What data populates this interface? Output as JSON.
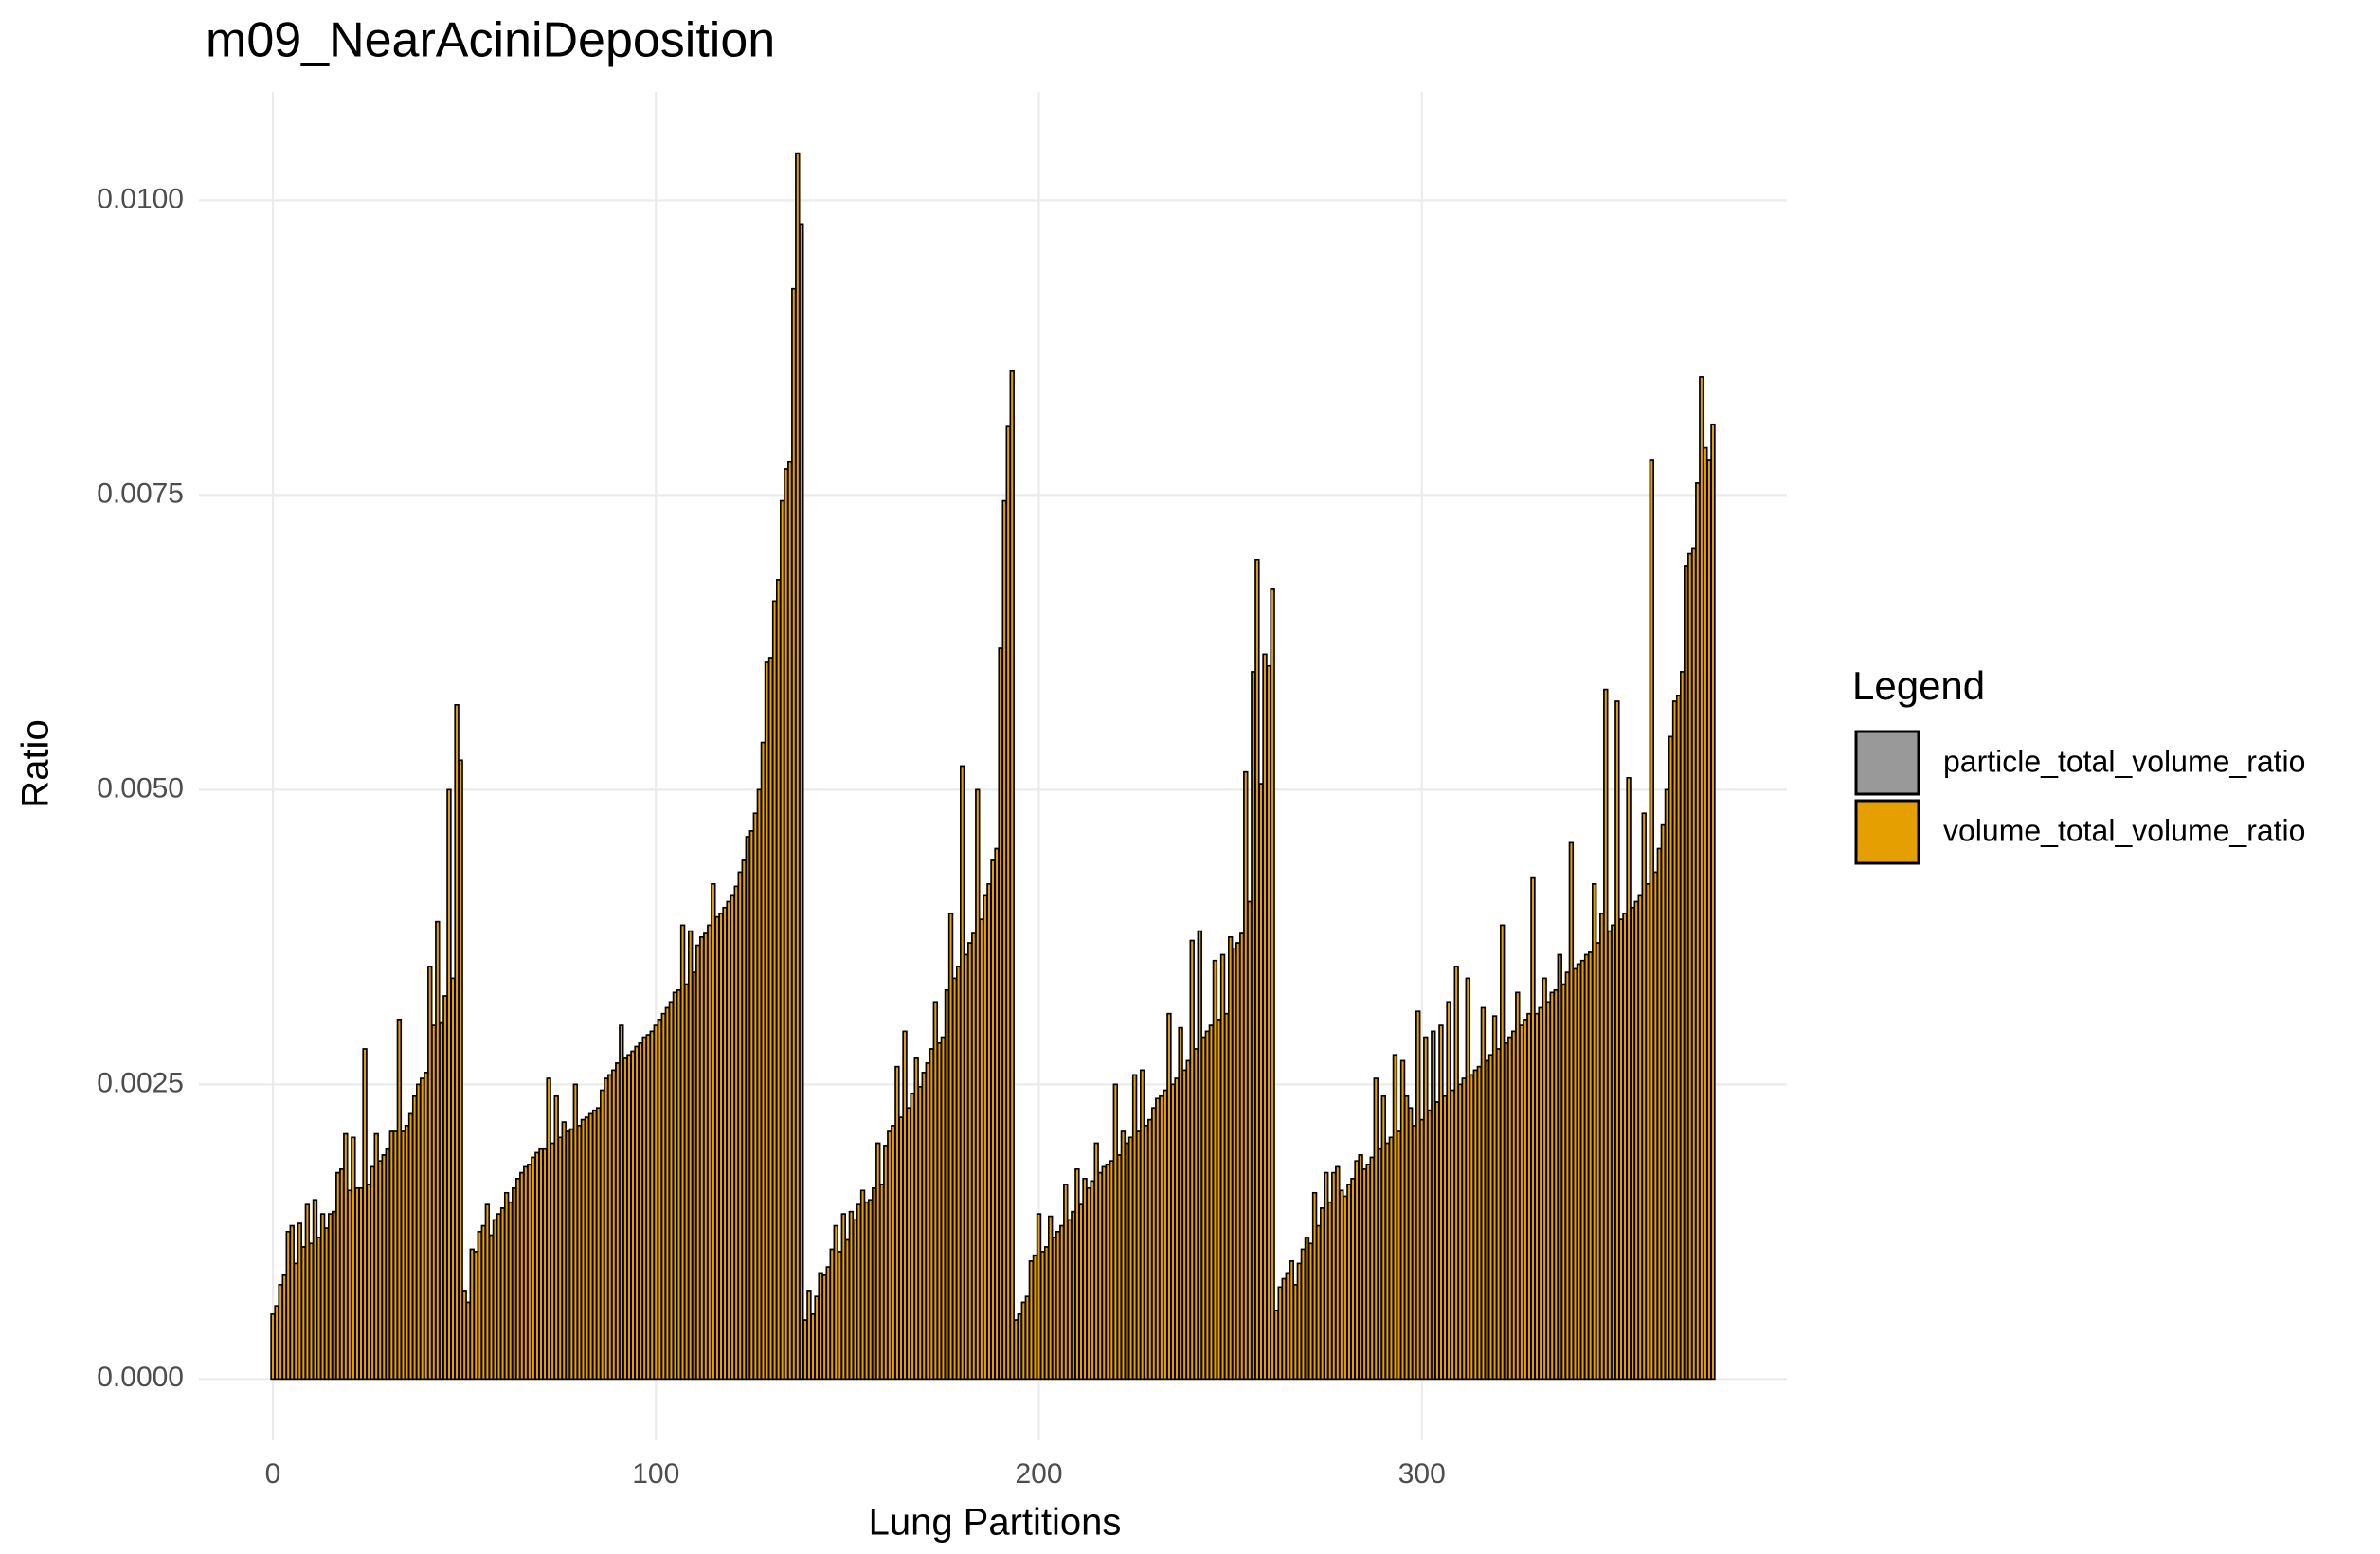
{
  "chart_data": {
    "type": "bar",
    "title": "m09_NearAciniDeposition",
    "x_label": "Lung Partitions",
    "y_label": "Ratio",
    "legend_title": "Legend",
    "legend": "right",
    "grid": true,
    "bar_outline": "#000000",
    "xlim": [
      -19.3,
      395.3
    ],
    "xticks": [
      0,
      100,
      200,
      300
    ],
    "ylim": [
      -0.00052,
      0.01092
    ],
    "yticks": [
      {
        "value": 0,
        "label": "0.0000"
      },
      {
        "value": 0.0025,
        "label": "0.0025"
      },
      {
        "value": 0.005,
        "label": "0.0050"
      },
      {
        "value": 0.0075,
        "label": "0.0075"
      },
      {
        "value": 0.01,
        "label": "0.0100"
      }
    ],
    "x": [
      0,
      1,
      2,
      3,
      4,
      5,
      6,
      7,
      8,
      9,
      10,
      11,
      12,
      13,
      14,
      15,
      16,
      17,
      18,
      19,
      20,
      21,
      22,
      23,
      24,
      25,
      26,
      27,
      28,
      29,
      30,
      31,
      32,
      33,
      34,
      35,
      36,
      37,
      38,
      39,
      40,
      41,
      42,
      43,
      44,
      45,
      46,
      47,
      48,
      49,
      50,
      51,
      52,
      53,
      54,
      55,
      56,
      57,
      58,
      59,
      60,
      61,
      62,
      63,
      64,
      65,
      66,
      67,
      68,
      69,
      70,
      71,
      72,
      73,
      74,
      75,
      76,
      77,
      78,
      79,
      80,
      81,
      82,
      83,
      84,
      85,
      86,
      87,
      88,
      89,
      90,
      91,
      92,
      93,
      94,
      95,
      96,
      97,
      98,
      99,
      100,
      101,
      102,
      103,
      104,
      105,
      106,
      107,
      108,
      109,
      110,
      111,
      112,
      113,
      114,
      115,
      116,
      117,
      118,
      119,
      120,
      121,
      122,
      123,
      124,
      125,
      126,
      127,
      128,
      129,
      130,
      131,
      132,
      133,
      134,
      135,
      136,
      137,
      138,
      139,
      140,
      141,
      142,
      143,
      144,
      145,
      146,
      147,
      148,
      149,
      150,
      151,
      152,
      153,
      154,
      155,
      156,
      157,
      158,
      159,
      160,
      161,
      162,
      163,
      164,
      165,
      166,
      167,
      168,
      169,
      170,
      171,
      172,
      173,
      174,
      175,
      176,
      177,
      178,
      179,
      180,
      181,
      182,
      183,
      184,
      185,
      186,
      187,
      188,
      189,
      190,
      191,
      192,
      193,
      194,
      195,
      196,
      197,
      198,
      199,
      200,
      201,
      202,
      203,
      204,
      205,
      206,
      207,
      208,
      209,
      210,
      211,
      212,
      213,
      214,
      215,
      216,
      217,
      218,
      219,
      220,
      221,
      222,
      223,
      224,
      225,
      226,
      227,
      228,
      229,
      230,
      231,
      232,
      233,
      234,
      235,
      236,
      237,
      238,
      239,
      240,
      241,
      242,
      243,
      244,
      245,
      246,
      247,
      248,
      249,
      250,
      251,
      252,
      253,
      254,
      255,
      256,
      257,
      258,
      259,
      260,
      261,
      262,
      263,
      264,
      265,
      266,
      267,
      268,
      269,
      270,
      271,
      272,
      273,
      274,
      275,
      276,
      277,
      278,
      279,
      280,
      281,
      282,
      283,
      284,
      285,
      286,
      287,
      288,
      289,
      290,
      291,
      292,
      293,
      294,
      295,
      296,
      297,
      298,
      299,
      300,
      301,
      302,
      303,
      304,
      305,
      306,
      307,
      308,
      309,
      310,
      311,
      312,
      313,
      314,
      315,
      316,
      317,
      318,
      319,
      320,
      321,
      322,
      323,
      324,
      325,
      326,
      327,
      328,
      329,
      330,
      331,
      332,
      333,
      334,
      335,
      336,
      337,
      338,
      339,
      340,
      341,
      342,
      343,
      344,
      345,
      346,
      347,
      348,
      349,
      350,
      351,
      352,
      353,
      354,
      355,
      356,
      357,
      358,
      359,
      360,
      361,
      362,
      363,
      364,
      365,
      366,
      367,
      368,
      369,
      370,
      371,
      372,
      373,
      374,
      375,
      376
    ],
    "series": [
      {
        "name": "particle_total_volume_ratio",
        "color": "#999999",
        "values": [
          0.00055,
          0.00062,
          0.0008,
          0.00088,
          0.00125,
          0.0013,
          0.00098,
          0.00132,
          0.00112,
          0.00148,
          0.00115,
          0.00152,
          0.0012,
          0.0014,
          0.00128,
          0.0014,
          0.00142,
          0.00175,
          0.00178,
          0.00208,
          0.0016,
          0.00205,
          0.00162,
          0.00162,
          0.0028,
          0.00165,
          0.0018,
          0.00208,
          0.00185,
          0.0019,
          0.00195,
          0.0021,
          0.0021,
          0.00305,
          0.0021,
          0.00215,
          0.00225,
          0.0024,
          0.0025,
          0.00255,
          0.0026,
          0.0035,
          0.003,
          0.00388,
          0.00302,
          0.00325,
          0.005,
          0.0034,
          0.00572,
          0.00525,
          0.00075,
          0.00065,
          0.0011,
          0.00108,
          0.00125,
          0.0013,
          0.00148,
          0.00122,
          0.00135,
          0.0014,
          0.00145,
          0.00158,
          0.0015,
          0.00162,
          0.0017,
          0.00175,
          0.0018,
          0.00182,
          0.00188,
          0.00192,
          0.00195,
          0.00195,
          0.00255,
          0.002,
          0.0024,
          0.00205,
          0.00218,
          0.0021,
          0.00212,
          0.0025,
          0.00215,
          0.0022,
          0.00222,
          0.00225,
          0.00228,
          0.0023,
          0.00245,
          0.00255,
          0.00258,
          0.00262,
          0.00268,
          0.003,
          0.00272,
          0.00275,
          0.00278,
          0.00282,
          0.00285,
          0.0029,
          0.00292,
          0.00295,
          0.003,
          0.00305,
          0.0031,
          0.00315,
          0.0032,
          0.00328,
          0.0033,
          0.00385,
          0.00335,
          0.0038,
          0.00345,
          0.00368,
          0.00375,
          0.00378,
          0.00385,
          0.0042,
          0.00392,
          0.00395,
          0.004,
          0.00405,
          0.0041,
          0.00418,
          0.0043,
          0.0044,
          0.0046,
          0.00465,
          0.0048,
          0.005,
          0.0054,
          0.00608,
          0.00612,
          0.0066,
          0.00678,
          0.00745,
          0.00772,
          0.00778,
          0.00925,
          0.0104,
          0.0098,
          0.0005,
          0.00075,
          0.00055,
          0.0007,
          0.0009,
          0.00088,
          0.00095,
          0.0011,
          0.0013,
          0.00108,
          0.0014,
          0.00118,
          0.00142,
          0.00135,
          0.00148,
          0.0016,
          0.0015,
          0.00152,
          0.00162,
          0.002,
          0.00165,
          0.00198,
          0.0021,
          0.00215,
          0.00265,
          0.00222,
          0.00295,
          0.0023,
          0.00242,
          0.00272,
          0.00248,
          0.0026,
          0.00268,
          0.0028,
          0.0032,
          0.00285,
          0.0029,
          0.0033,
          0.00395,
          0.0034,
          0.0035,
          0.0052,
          0.0036,
          0.0037,
          0.00378,
          0.005,
          0.0039,
          0.0041,
          0.0042,
          0.0044,
          0.0045,
          0.0062,
          0.00745,
          0.00808,
          0.00855,
          0.0005,
          0.00055,
          0.00065,
          0.0007,
          0.001,
          0.00105,
          0.0014,
          0.00108,
          0.00112,
          0.00138,
          0.0012,
          0.00125,
          0.0013,
          0.00165,
          0.00135,
          0.00142,
          0.00178,
          0.00148,
          0.0017,
          0.00162,
          0.00168,
          0.002,
          0.00175,
          0.0018,
          0.00182,
          0.00185,
          0.0025,
          0.0019,
          0.0021,
          0.002,
          0.00205,
          0.00258,
          0.0021,
          0.00262,
          0.00215,
          0.0022,
          0.0023,
          0.00238,
          0.0024,
          0.00245,
          0.0031,
          0.0025,
          0.00255,
          0.00298,
          0.00262,
          0.0027,
          0.00372,
          0.0028,
          0.0038,
          0.0029,
          0.00295,
          0.003,
          0.00355,
          0.00305,
          0.0036,
          0.0031,
          0.00375,
          0.00365,
          0.0037,
          0.00378,
          0.00515,
          0.00405,
          0.006,
          0.00695,
          0.00505,
          0.00615,
          0.00605,
          0.0067,
          0.00058,
          0.00078,
          0.00085,
          0.0009,
          0.001,
          0.0008,
          0.00098,
          0.0011,
          0.0012,
          0.00115,
          0.00158,
          0.0013,
          0.00145,
          0.00175,
          0.0015,
          0.00175,
          0.0018,
          0.0016,
          0.00155,
          0.00165,
          0.0017,
          0.00185,
          0.0019,
          0.00178,
          0.00182,
          0.00188,
          0.00255,
          0.00195,
          0.0024,
          0.002,
          0.00205,
          0.00275,
          0.0021,
          0.0027,
          0.0024,
          0.0023,
          0.00215,
          0.00312,
          0.0022,
          0.0029,
          0.00228,
          0.00295,
          0.00235,
          0.003,
          0.0024,
          0.0032,
          0.00245,
          0.0035,
          0.0025,
          0.00255,
          0.0034,
          0.00258,
          0.00262,
          0.00265,
          0.00315,
          0.0027,
          0.00275,
          0.00308,
          0.0028,
          0.00385,
          0.00285,
          0.0029,
          0.00295,
          0.00328,
          0.003,
          0.00305,
          0.0031,
          0.00425,
          0.0031,
          0.00315,
          0.0034,
          0.0032,
          0.00328,
          0.0033,
          0.0036,
          0.00335,
          0.00345,
          0.00455,
          0.00348,
          0.00352,
          0.00355,
          0.0036,
          0.00362,
          0.0042,
          0.0037,
          0.00395,
          0.00585,
          0.0038,
          0.00385,
          0.00575,
          0.0039,
          0.00395,
          0.0051,
          0.004,
          0.00405,
          0.0041,
          0.0048,
          0.0042,
          0.0078,
          0.0043,
          0.0045,
          0.0047,
          0.005,
          0.00545,
          0.00575,
          0.0058,
          0.006,
          0.0069,
          0.007,
          0.00705,
          0.0076,
          0.0085,
          0.0079,
          0.0078,
          0.0081
        ]
      },
      {
        "name": "volume_total_volume_ratio",
        "color": "#E69F00",
        "values": [
          0.00055,
          0.00062,
          0.0008,
          0.00088,
          0.00125,
          0.0013,
          0.00098,
          0.00132,
          0.00112,
          0.00148,
          0.00115,
          0.00152,
          0.0012,
          0.0014,
          0.00128,
          0.0014,
          0.00142,
          0.00175,
          0.00178,
          0.00208,
          0.0016,
          0.00205,
          0.00162,
          0.00162,
          0.0028,
          0.00165,
          0.0018,
          0.00208,
          0.00185,
          0.0019,
          0.00195,
          0.0021,
          0.0021,
          0.00305,
          0.0021,
          0.00215,
          0.00225,
          0.0024,
          0.0025,
          0.00255,
          0.0026,
          0.0035,
          0.003,
          0.00388,
          0.00302,
          0.00325,
          0.005,
          0.0034,
          0.00572,
          0.00525,
          0.00075,
          0.00065,
          0.0011,
          0.00108,
          0.00125,
          0.0013,
          0.00148,
          0.00122,
          0.00135,
          0.0014,
          0.00145,
          0.00158,
          0.0015,
          0.00162,
          0.0017,
          0.00175,
          0.0018,
          0.00182,
          0.00188,
          0.00192,
          0.00195,
          0.00195,
          0.00255,
          0.002,
          0.0024,
          0.00205,
          0.00218,
          0.0021,
          0.00212,
          0.0025,
          0.00215,
          0.0022,
          0.00222,
          0.00225,
          0.00228,
          0.0023,
          0.00245,
          0.00255,
          0.00258,
          0.00262,
          0.00268,
          0.003,
          0.00272,
          0.00275,
          0.00278,
          0.00282,
          0.00285,
          0.0029,
          0.00292,
          0.00295,
          0.003,
          0.00305,
          0.0031,
          0.00315,
          0.0032,
          0.00328,
          0.0033,
          0.00385,
          0.00335,
          0.0038,
          0.00345,
          0.00368,
          0.00375,
          0.00378,
          0.00385,
          0.0042,
          0.00392,
          0.00395,
          0.004,
          0.00405,
          0.0041,
          0.00418,
          0.0043,
          0.0044,
          0.0046,
          0.00465,
          0.0048,
          0.005,
          0.0054,
          0.00608,
          0.00612,
          0.0066,
          0.00678,
          0.00745,
          0.00772,
          0.00778,
          0.00925,
          0.0104,
          0.0098,
          0.0005,
          0.00075,
          0.00055,
          0.0007,
          0.0009,
          0.00088,
          0.00095,
          0.0011,
          0.0013,
          0.00108,
          0.0014,
          0.00118,
          0.00142,
          0.00135,
          0.00148,
          0.0016,
          0.0015,
          0.00152,
          0.00162,
          0.002,
          0.00165,
          0.00198,
          0.0021,
          0.00215,
          0.00265,
          0.00222,
          0.00295,
          0.0023,
          0.00242,
          0.00272,
          0.00248,
          0.0026,
          0.00268,
          0.0028,
          0.0032,
          0.00285,
          0.0029,
          0.0033,
          0.00395,
          0.0034,
          0.0035,
          0.0052,
          0.0036,
          0.0037,
          0.00378,
          0.005,
          0.0039,
          0.0041,
          0.0042,
          0.0044,
          0.0045,
          0.0062,
          0.00745,
          0.00808,
          0.00855,
          0.0005,
          0.00055,
          0.00065,
          0.0007,
          0.001,
          0.00105,
          0.0014,
          0.00108,
          0.00112,
          0.00138,
          0.0012,
          0.00125,
          0.0013,
          0.00165,
          0.00135,
          0.00142,
          0.00178,
          0.00148,
          0.0017,
          0.00162,
          0.00168,
          0.002,
          0.00175,
          0.0018,
          0.00182,
          0.00185,
          0.0025,
          0.0019,
          0.0021,
          0.002,
          0.00205,
          0.00258,
          0.0021,
          0.00262,
          0.00215,
          0.0022,
          0.0023,
          0.00238,
          0.0024,
          0.00245,
          0.0031,
          0.0025,
          0.00255,
          0.00298,
          0.00262,
          0.0027,
          0.00372,
          0.0028,
          0.0038,
          0.0029,
          0.00295,
          0.003,
          0.00355,
          0.00305,
          0.0036,
          0.0031,
          0.00375,
          0.00365,
          0.0037,
          0.00378,
          0.00515,
          0.00405,
          0.006,
          0.00695,
          0.00505,
          0.00615,
          0.00605,
          0.0067,
          0.00058,
          0.00078,
          0.00085,
          0.0009,
          0.001,
          0.0008,
          0.00098,
          0.0011,
          0.0012,
          0.00115,
          0.00158,
          0.0013,
          0.00145,
          0.00175,
          0.0015,
          0.00175,
          0.0018,
          0.0016,
          0.00155,
          0.00165,
          0.0017,
          0.00185,
          0.0019,
          0.00178,
          0.00182,
          0.00188,
          0.00255,
          0.00195,
          0.0024,
          0.002,
          0.00205,
          0.00275,
          0.0021,
          0.0027,
          0.0024,
          0.0023,
          0.00215,
          0.00312,
          0.0022,
          0.0029,
          0.00228,
          0.00295,
          0.00235,
          0.003,
          0.0024,
          0.0032,
          0.00245,
          0.0035,
          0.0025,
          0.00255,
          0.0034,
          0.00258,
          0.00262,
          0.00265,
          0.00315,
          0.0027,
          0.00275,
          0.00308,
          0.0028,
          0.00385,
          0.00285,
          0.0029,
          0.00295,
          0.00328,
          0.003,
          0.00305,
          0.0031,
          0.00425,
          0.0031,
          0.00315,
          0.0034,
          0.0032,
          0.00328,
          0.0033,
          0.0036,
          0.00335,
          0.00345,
          0.00455,
          0.00348,
          0.00352,
          0.00355,
          0.0036,
          0.00362,
          0.0042,
          0.0037,
          0.00395,
          0.00585,
          0.0038,
          0.00385,
          0.00575,
          0.0039,
          0.00395,
          0.0051,
          0.004,
          0.00405,
          0.0041,
          0.0048,
          0.0042,
          0.0078,
          0.0043,
          0.0045,
          0.0047,
          0.005,
          0.00545,
          0.00575,
          0.0058,
          0.006,
          0.0069,
          0.007,
          0.00705,
          0.0076,
          0.0085,
          0.0079,
          0.0078,
          0.0081
        ]
      }
    ]
  }
}
